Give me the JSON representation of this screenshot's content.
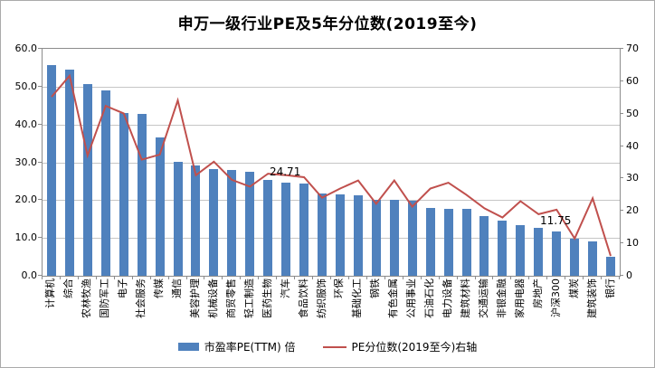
{
  "chart_data": {
    "type": "bar+line",
    "title": "申万一级行业PE及5年分位数(2019至今)",
    "categories": [
      "计算机",
      "综合",
      "农林牧渔",
      "国防军工",
      "电子",
      "社会服务",
      "传媒",
      "通信",
      "美容护理",
      "机械设备",
      "商贸零售",
      "轻工制造",
      "医药生物",
      "汽车",
      "食品饮料",
      "纺织服饰",
      "环保",
      "基础化工",
      "钢铁",
      "有色金属",
      "公用事业",
      "石油石化",
      "电力设备",
      "建筑材料",
      "交通运输",
      "非银金融",
      "家用电器",
      "房地产",
      "沪深300",
      "煤炭",
      "建筑装饰",
      "银行"
    ],
    "series": [
      {
        "name": "市盈率PE(TTM) 倍",
        "type": "bar",
        "axis": "left",
        "color": "#4F81BD",
        "values": [
          55.7,
          54.4,
          50.8,
          48.9,
          43.0,
          42.7,
          36.5,
          30.2,
          29.2,
          28.1,
          28.0,
          27.4,
          25.3,
          24.71,
          24.3,
          21.8,
          21.4,
          21.2,
          20.1,
          20.0,
          19.8,
          17.9,
          17.7,
          17.6,
          15.7,
          14.7,
          13.4,
          12.6,
          11.75,
          9.8,
          9.1,
          5.1
        ]
      },
      {
        "name": "PE分位数(2019至今)右轴",
        "type": "line",
        "axis": "right",
        "color": "#C0504D",
        "values": [
          55.2,
          61.7,
          37.1,
          52.4,
          50.1,
          35.8,
          37.4,
          54.1,
          31.0,
          35.2,
          29.6,
          27.5,
          31.5,
          31.0,
          30.4,
          24.1,
          26.9,
          29.4,
          22.2,
          29.4,
          21.3,
          26.9,
          28.7,
          25.0,
          20.8,
          18.0,
          23.0,
          19.0,
          20.4,
          11.5,
          23.9,
          6.1
        ]
      }
    ],
    "left_axis": {
      "min": 0,
      "max": 60,
      "step": 10,
      "tick_labels": [
        "0.0",
        "10.0",
        "20.0",
        "30.0",
        "40.0",
        "50.0",
        "60.0"
      ]
    },
    "right_axis": {
      "min": 0,
      "max": 70,
      "step": 10,
      "tick_labels": [
        "0",
        "10",
        "20",
        "30",
        "40",
        "50",
        "60",
        "70"
      ]
    },
    "data_labels": [
      {
        "category_index": 13,
        "category": "汽车",
        "text": "24.71"
      },
      {
        "category_index": 28,
        "category": "沪深300",
        "text": "11.75"
      }
    ],
    "grid": true,
    "legend_position": "bottom"
  }
}
